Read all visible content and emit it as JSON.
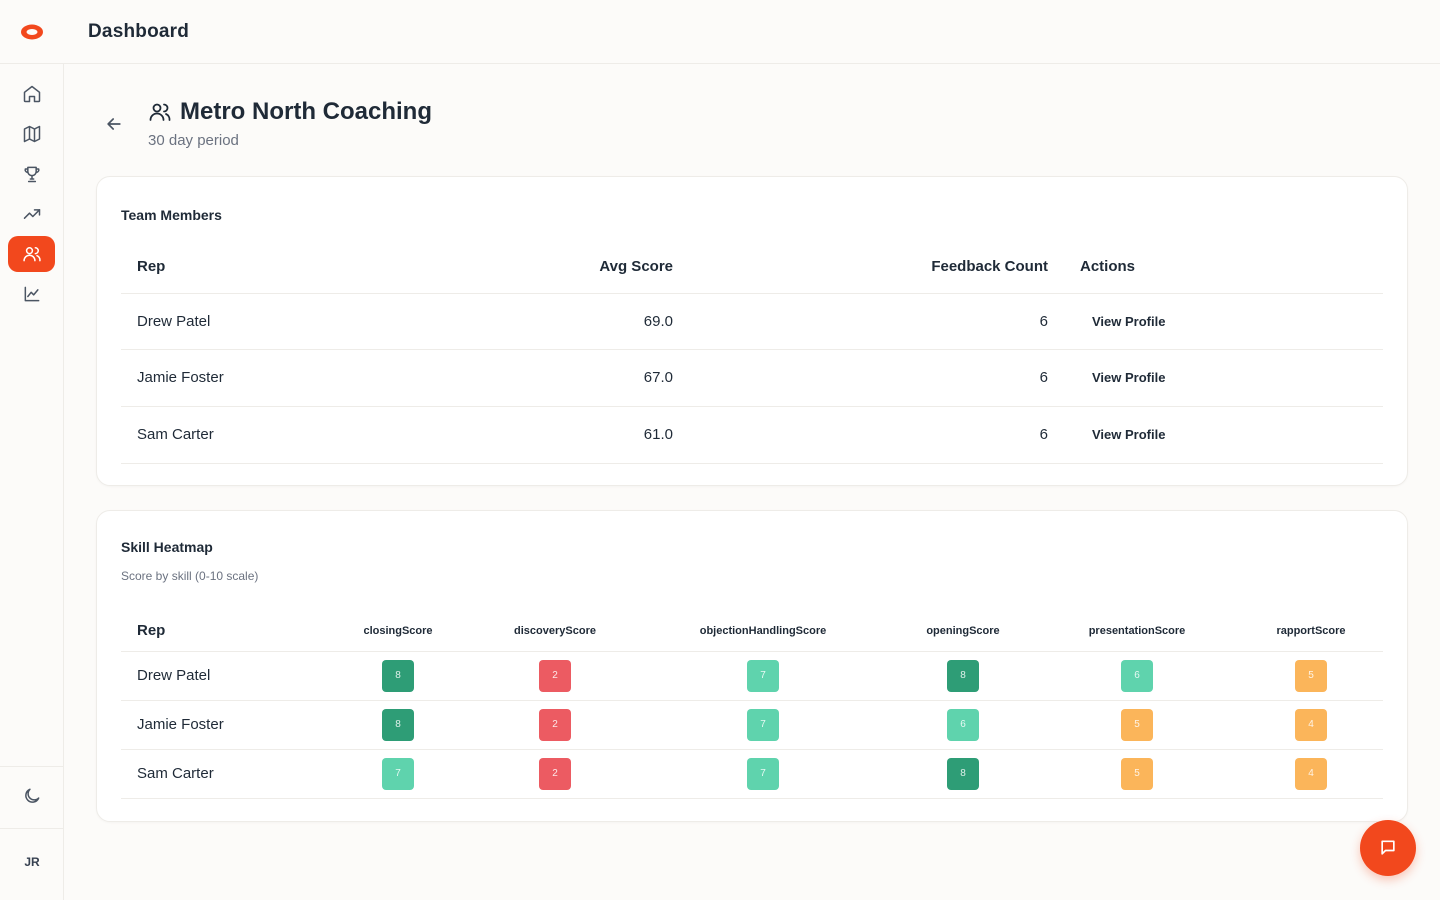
{
  "header": {
    "title": "Dashboard"
  },
  "colors": {
    "accent": "#f2481d",
    "dark_green": "#2e9d76",
    "light_green": "#5fd3ad",
    "red": "#ec5b62",
    "orange": "#fbb55a"
  },
  "sidebar": {
    "items": [
      {
        "name": "home-icon"
      },
      {
        "name": "map-icon"
      },
      {
        "name": "trophy-icon"
      },
      {
        "name": "trending-up-icon"
      },
      {
        "name": "users-icon",
        "active": true
      },
      {
        "name": "line-chart-icon"
      }
    ],
    "theme_icon": "moon-icon",
    "avatar": "JR"
  },
  "page": {
    "title": "Metro North Coaching",
    "subtitle": "30 day period"
  },
  "team": {
    "title": "Team Members",
    "columns": [
      "Rep",
      "Avg Score",
      "Feedback Count",
      "Actions"
    ],
    "rows": [
      {
        "rep": "Drew Patel",
        "avg": "69.0",
        "count": "6",
        "action": "View Profile"
      },
      {
        "rep": "Jamie Foster",
        "avg": "67.0",
        "count": "6",
        "action": "View Profile"
      },
      {
        "rep": "Sam Carter",
        "avg": "61.0",
        "count": "6",
        "action": "View Profile"
      }
    ]
  },
  "heatmap": {
    "title": "Skill Heatmap",
    "subtitle": "Score by skill (0-10 scale)",
    "rep_header": "Rep",
    "skills": [
      "closingScore",
      "discoveryScore",
      "objectionHandlingScore",
      "openingScore",
      "presentationScore",
      "rapportScore"
    ],
    "rows": [
      {
        "rep": "Drew Patel",
        "scores": [
          8,
          2,
          7,
          8,
          6,
          5
        ]
      },
      {
        "rep": "Jamie Foster",
        "scores": [
          8,
          2,
          7,
          6,
          5,
          4
        ]
      },
      {
        "rep": "Sam Carter",
        "scores": [
          7,
          2,
          7,
          8,
          5,
          4
        ]
      }
    ]
  }
}
